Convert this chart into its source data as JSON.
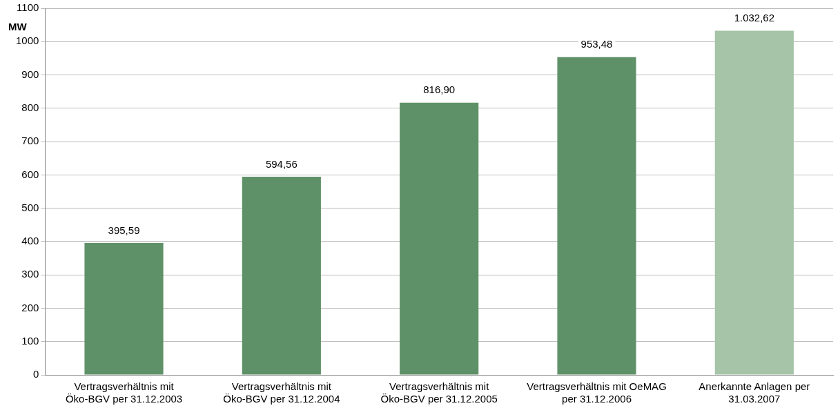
{
  "chart_data": {
    "type": "bar",
    "ylabel": "MW",
    "categories": [
      "Vertragsverhältnis mit Öko-BGV per 31.12.2003",
      "Vertragsverhältnis mit Öko-BGV per 31.12.2004",
      "Vertragsverhältnis mit Öko-BGV per 31.12.2005",
      "Vertragsverhältnis mit OeMAG per 31.12.2006",
      "Anerkannte Anlagen per 31.03.2007"
    ],
    "values": [
      395.59,
      594.56,
      816.9,
      953.48,
      1032.62
    ],
    "colors": [
      "#5f9168",
      "#5f9168",
      "#5f9168",
      "#5f9168",
      "#a6c4a8"
    ],
    "value_labels": [
      "395,59",
      "594,56",
      "816,90",
      "953,48",
      "1.032,62"
    ],
    "ylim": [
      0,
      1100
    ],
    "yticks": [
      0,
      100,
      200,
      300,
      400,
      500,
      600,
      700,
      800,
      900,
      1000,
      1100
    ],
    "grid": "y"
  }
}
